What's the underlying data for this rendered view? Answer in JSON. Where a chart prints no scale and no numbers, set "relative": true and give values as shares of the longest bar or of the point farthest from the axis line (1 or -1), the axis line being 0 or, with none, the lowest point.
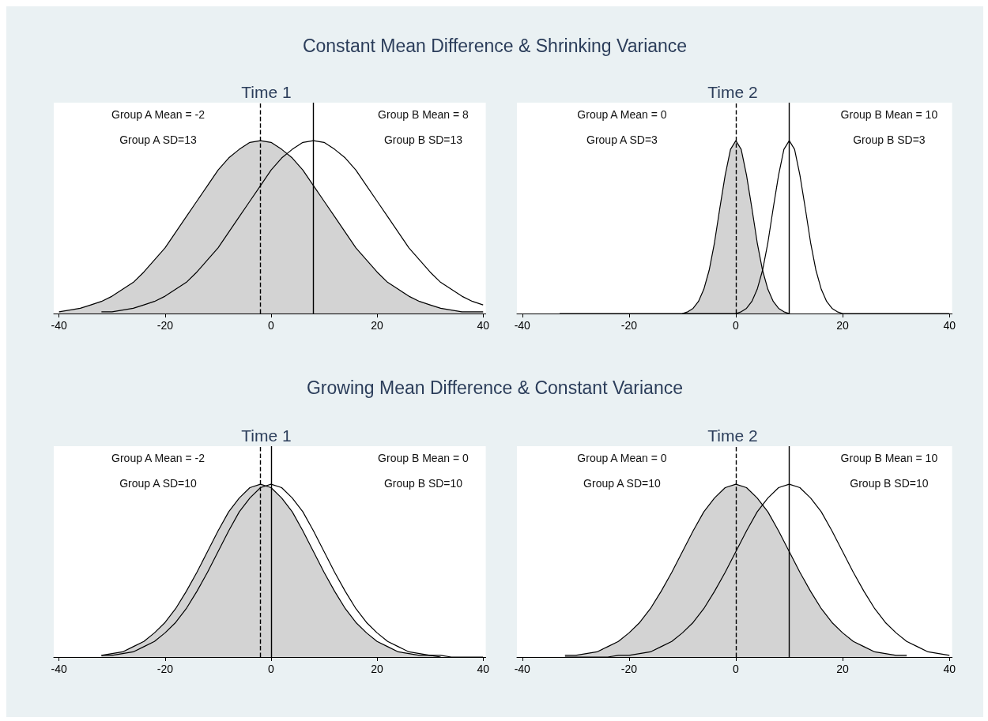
{
  "chart_data": [
    {
      "type": "area",
      "title": "Time 1",
      "relative": true,
      "tick_labels": "x",
      "marker": "none",
      "x": [
        -40,
        -38,
        -36,
        -34,
        -32,
        -30,
        -28,
        -26,
        -24,
        -22,
        -20,
        -18,
        -16,
        -14,
        -12,
        -10,
        -8,
        -6,
        -4,
        -2,
        0,
        2,
        4,
        6,
        8,
        10,
        12,
        14,
        16,
        18,
        20,
        22,
        24,
        26,
        28,
        30,
        32,
        34,
        36,
        38,
        40
      ],
      "xlim": [
        -41,
        40.5
      ],
      "xticks": [
        -40,
        -20,
        0,
        20,
        40
      ],
      "series": [
        {
          "color": "#d3d3d3",
          "values": [
            0.01,
            0.02,
            0.03,
            0.05,
            0.07,
            0.1,
            0.14,
            0.18,
            0.24,
            0.31,
            0.38,
            0.47,
            0.56,
            0.65,
            0.74,
            0.83,
            0.9,
            0.95,
            0.99,
            1,
            0.99,
            0.95,
            0.9,
            0.83,
            0.74,
            0.65,
            0.56,
            0.47,
            0.38,
            0.31,
            0.24,
            0.18,
            0.14,
            0.1,
            0.07,
            0.05,
            0.03,
            0.02,
            0.01,
            0.01,
            0.01
          ]
        },
        {
          "type": "line",
          "color": "#000000",
          "values": [
            null,
            null,
            null,
            null,
            0.01,
            0.01,
            0.02,
            0.03,
            0.05,
            0.07,
            0.1,
            0.14,
            0.18,
            0.24,
            0.31,
            0.38,
            0.47,
            0.56,
            0.65,
            0.74,
            0.83,
            0.9,
            0.95,
            0.99,
            1,
            0.99,
            0.95,
            0.9,
            0.83,
            0.74,
            0.65,
            0.56,
            0.47,
            0.38,
            0.31,
            0.24,
            0.18,
            0.14,
            0.1,
            0.07,
            0.05
          ]
        }
      ],
      "ref_lines": [
        {
          "axis": "x",
          "value": -2,
          "color": "#000000",
          "line_style": "dashed"
        },
        {
          "axis": "x",
          "value": 8,
          "color": "#000000",
          "line_style": "solid"
        }
      ],
      "annotations": [
        "Constant Mean Difference & Shrinking Variance",
        "Group A Mean = -2",
        "Group A SD=13",
        "Group B Mean = 8",
        "Group B SD=13"
      ]
    },
    {
      "type": "area",
      "title": "Time 2",
      "relative": true,
      "tick_labels": "x",
      "marker": "none",
      "x": [
        -33,
        -10,
        -9,
        -8,
        -7,
        -6,
        -5,
        -4,
        -3,
        -2,
        -1,
        0,
        1,
        2,
        3,
        4,
        5,
        6,
        7,
        8,
        9,
        10,
        11,
        12,
        13,
        14,
        15,
        16,
        17,
        18,
        19,
        20,
        40
      ],
      "xlim": [
        -41,
        40.5
      ],
      "xticks": [
        -40,
        -20,
        0,
        20,
        40
      ],
      "series": [
        {
          "color": "#d3d3d3",
          "values": [
            null,
            0,
            0.01,
            0.03,
            0.07,
            0.14,
            0.25,
            0.41,
            0.61,
            0.8,
            0.95,
            1,
            0.95,
            0.8,
            0.61,
            0.41,
            0.25,
            0.14,
            0.07,
            0.03,
            0.01,
            0,
            null,
            null,
            null,
            null,
            null,
            null,
            null,
            null,
            null,
            null,
            null
          ]
        },
        {
          "type": "line",
          "color": "#000000",
          "values": [
            0,
            0,
            0,
            0,
            0,
            0,
            0,
            0,
            0,
            0,
            0,
            0,
            0.01,
            0.03,
            0.07,
            0.14,
            0.25,
            0.41,
            0.61,
            0.8,
            0.95,
            1,
            0.95,
            0.8,
            0.61,
            0.41,
            0.25,
            0.14,
            0.07,
            0.03,
            0.01,
            0,
            0
          ]
        }
      ],
      "ref_lines": [
        {
          "axis": "x",
          "value": 0,
          "color": "#000000",
          "line_style": "dashed"
        },
        {
          "axis": "x",
          "value": 10,
          "color": "#000000",
          "line_style": "solid"
        }
      ],
      "annotations": [
        "Group A Mean = 0",
        "Group A SD=3",
        "Group B Mean = 10",
        "Group B SD=3"
      ]
    },
    {
      "type": "area",
      "title": "Time 1",
      "relative": true,
      "tick_labels": "x",
      "marker": "none",
      "x": [
        -32,
        -30,
        -28,
        -26,
        -24,
        -22,
        -20,
        -18,
        -16,
        -14,
        -12,
        -10,
        -8,
        -6,
        -4,
        -2,
        0,
        2,
        4,
        6,
        8,
        10,
        12,
        14,
        16,
        18,
        20,
        22,
        24,
        26,
        28,
        30,
        32,
        34,
        36,
        38,
        40
      ],
      "xlim": [
        -41,
        40.5
      ],
      "xticks": [
        -40,
        -20,
        0,
        20,
        40
      ],
      "series": [
        {
          "color": "#d3d3d3",
          "values": [
            0.01,
            0.02,
            0.03,
            0.06,
            0.09,
            0.14,
            0.2,
            0.28,
            0.38,
            0.49,
            0.61,
            0.73,
            0.84,
            0.92,
            0.98,
            1,
            0.98,
            0.92,
            0.84,
            0.73,
            0.61,
            0.49,
            0.38,
            0.28,
            0.2,
            0.14,
            0.09,
            0.06,
            0.03,
            0.02,
            0.01,
            0.01,
            0,
            null,
            null,
            null,
            null
          ]
        },
        {
          "type": "line",
          "color": "#000000",
          "values": [
            0.01,
            0.01,
            0.02,
            0.03,
            0.06,
            0.09,
            0.14,
            0.2,
            0.28,
            0.38,
            0.49,
            0.61,
            0.73,
            0.84,
            0.92,
            0.98,
            1,
            0.98,
            0.92,
            0.84,
            0.73,
            0.61,
            0.49,
            0.38,
            0.28,
            0.2,
            0.14,
            0.09,
            0.06,
            0.03,
            0.02,
            0.01,
            0.01,
            0,
            0,
            0,
            0
          ]
        }
      ],
      "ref_lines": [
        {
          "axis": "x",
          "value": -2,
          "color": "#000000",
          "line_style": "dashed"
        },
        {
          "axis": "x",
          "value": 0,
          "color": "#000000",
          "line_style": "solid"
        }
      ],
      "annotations": [
        "Growing Mean Difference & Constant Variance",
        "Group A Mean = -2",
        "Group A SD=10",
        "Group B Mean = 0",
        "Group B SD=10"
      ]
    },
    {
      "type": "area",
      "title": "Time 2",
      "relative": true,
      "tick_labels": "x",
      "marker": "none",
      "x": [
        -32,
        -30,
        -28,
        -26,
        -24,
        -22,
        -20,
        -18,
        -16,
        -14,
        -12,
        -10,
        -8,
        -6,
        -4,
        -2,
        0,
        2,
        4,
        6,
        8,
        10,
        12,
        14,
        16,
        18,
        20,
        22,
        24,
        26,
        28,
        30,
        32,
        34,
        36,
        38,
        40
      ],
      "xlim": [
        -41,
        40.5
      ],
      "xticks": [
        -40,
        -20,
        0,
        20,
        40
      ],
      "series": [
        {
          "color": "#d3d3d3",
          "values": [
            0.01,
            0.01,
            0.02,
            0.03,
            0.06,
            0.09,
            0.14,
            0.2,
            0.28,
            0.38,
            0.49,
            0.61,
            0.73,
            0.84,
            0.92,
            0.98,
            1,
            0.98,
            0.92,
            0.84,
            0.73,
            0.61,
            0.49,
            0.38,
            0.28,
            0.2,
            0.14,
            0.09,
            0.06,
            0.03,
            0.02,
            0.01,
            0.01,
            null,
            null,
            null,
            null
          ]
        },
        {
          "type": "line",
          "color": "#000000",
          "values": [
            0,
            0,
            0,
            0,
            0,
            0.01,
            0.01,
            0.02,
            0.03,
            0.06,
            0.09,
            0.14,
            0.2,
            0.28,
            0.38,
            0.49,
            0.61,
            0.73,
            0.84,
            0.92,
            0.98,
            1,
            0.98,
            0.92,
            0.84,
            0.73,
            0.61,
            0.49,
            0.38,
            0.28,
            0.2,
            0.14,
            0.09,
            0.06,
            0.03,
            0.02,
            0.01
          ]
        }
      ],
      "ref_lines": [
        {
          "axis": "x",
          "value": 0,
          "color": "#000000",
          "line_style": "dashed"
        },
        {
          "axis": "x",
          "value": 10,
          "color": "#000000",
          "line_style": "solid"
        }
      ],
      "annotations": [
        "Group A Mean = 0",
        "Group A SD=10",
        "Group B Mean = 10",
        "Group B SD=10"
      ]
    }
  ]
}
